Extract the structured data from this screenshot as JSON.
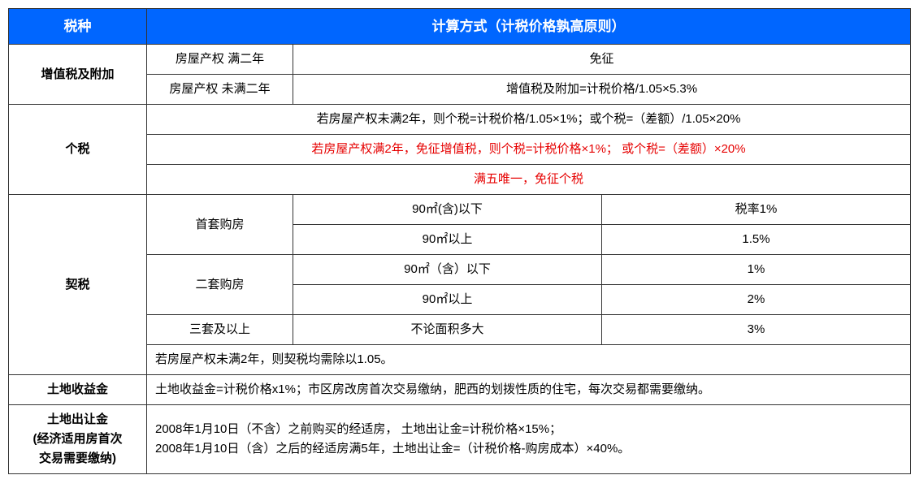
{
  "header": {
    "col1": "税种",
    "col2": "计算方式（计税价格孰高原则）"
  },
  "vat": {
    "label": "增值税及附加",
    "row1_cond": "房屋产权 满二年",
    "row1_result": "免征",
    "row2_cond": "房屋产权 未满二年",
    "row2_result": "增值税及附加=计税价格/1.05×5.3%"
  },
  "incometax": {
    "label": "个税",
    "line1": "若房屋产权未满2年，则个税=计税价格/1.05×1%；或个税=（差额）/1.05×20%",
    "line2": "若房屋产权满2年，免征增值税，则个税=计税价格×1%； 或个税=（差额）×20%",
    "line3": "满五唯一，免征个税"
  },
  "deedtax": {
    "label": "契税",
    "first_label": "首套购房",
    "first_a_cond": "90㎡(含)以下",
    "first_a_rate": "税率1%",
    "first_b_cond": "90㎡以上",
    "first_b_rate": "1.5%",
    "second_label": "二套购房",
    "second_a_cond": "90㎡（含）以下",
    "second_a_rate": "1%",
    "second_b_cond": "90㎡以上",
    "second_b_rate": "2%",
    "third_label": "三套及以上",
    "third_cond": "不论面积多大",
    "third_rate": "3%",
    "note": "若房屋产权未满2年，则契税均需除以1.05。"
  },
  "landprofit": {
    "label": "土地收益金",
    "text": "土地收益金=计税价格x1%；市区房改房首次交易缴纳，肥西的划拨性质的住宅，每次交易都需要缴纳。"
  },
  "landtransfer": {
    "label_l1": "土地出让金",
    "label_l2": "(经济适用房首次",
    "label_l3": "交易需要缴纳)",
    "text_l1": "2008年1月10日（不含）之前购买的经适房， 土地出让金=计税价格×15%；",
    "text_l2": "2008年1月10日（含）之后的经适房满5年，土地出让金=（计税价格-购房成本）×40%。"
  }
}
